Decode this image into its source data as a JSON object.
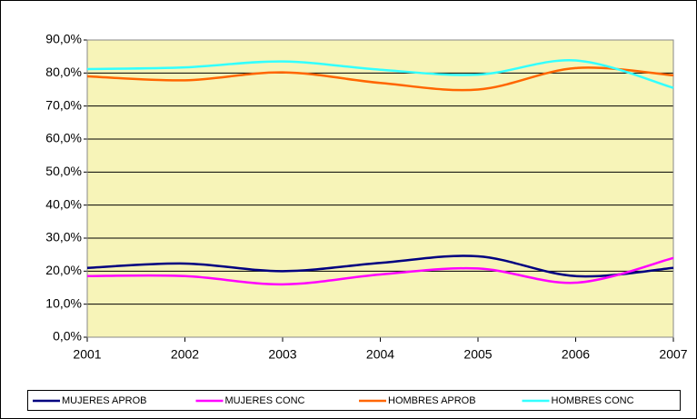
{
  "chart_data": {
    "type": "line",
    "x": [
      2001,
      2002,
      2003,
      2004,
      2005,
      2006,
      2007
    ],
    "series": [
      {
        "name": "MUJERES APROB",
        "color": "#000080",
        "values": [
          21,
          22.3,
          20,
          22.5,
          24.5,
          18.5,
          21
        ]
      },
      {
        "name": "MUJERES CONC",
        "color": "#ff00ff",
        "values": [
          18.5,
          18.5,
          16,
          19,
          20.8,
          16.5,
          24
        ]
      },
      {
        "name": "HOMBRES APROB",
        "color": "#ff6600",
        "values": [
          79,
          77.8,
          80.2,
          77,
          75,
          81.5,
          79.3
        ]
      },
      {
        "name": "HOMBRES CONC",
        "color": "#33ffff",
        "values": [
          81.2,
          81.7,
          83.5,
          81,
          79.5,
          83.8,
          75.5
        ]
      }
    ],
    "xlim": [
      2001,
      2007
    ],
    "xticks": [
      2001,
      2002,
      2003,
      2004,
      2005,
      2006,
      2007
    ],
    "ylim": [
      0,
      90
    ],
    "yticks": [
      {
        "value": 0,
        "label": "0,0%"
      },
      {
        "value": 10,
        "label": "10,0%"
      },
      {
        "value": 20,
        "label": "20,0%"
      },
      {
        "value": 30,
        "label": "30,0%"
      },
      {
        "value": 40,
        "label": "40,0%"
      },
      {
        "value": 50,
        "label": "50,0%"
      },
      {
        "value": 60,
        "label": "60,0%"
      },
      {
        "value": 70,
        "label": "70,0%"
      },
      {
        "value": 80,
        "label": "80,0%"
      },
      {
        "value": 90,
        "label": "90,0%"
      }
    ],
    "grid": true,
    "legend": "bottom",
    "plot_background": "#f7f4b8"
  }
}
